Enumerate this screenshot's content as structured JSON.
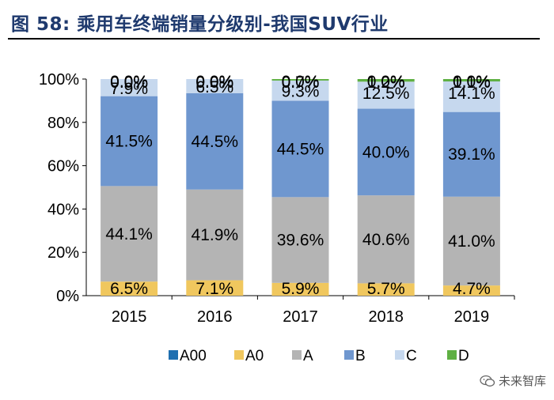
{
  "title": "图  58:  乘用车终端销量分级别-我国SUV行业",
  "watermark": "未来智库",
  "chart_data": {
    "type": "bar",
    "stacked": true,
    "categories": [
      "2015",
      "2016",
      "2017",
      "2018",
      "2019"
    ],
    "series": [
      {
        "name": "A00",
        "color": "#1f6fb0",
        "values": [
          0.0,
          0.0,
          0.0,
          0.0,
          0.0
        ]
      },
      {
        "name": "A0",
        "color": "#f0c75e",
        "values": [
          6.5,
          7.1,
          5.9,
          5.7,
          4.7
        ]
      },
      {
        "name": "A",
        "color": "#b4b4b4",
        "values": [
          44.1,
          41.9,
          39.6,
          40.6,
          41.0
        ]
      },
      {
        "name": "B",
        "color": "#6f97cf",
        "values": [
          41.5,
          44.5,
          44.5,
          40.0,
          39.1
        ]
      },
      {
        "name": "C",
        "color": "#c6d8ee",
        "values": [
          7.9,
          6.5,
          9.3,
          12.5,
          14.1
        ]
      },
      {
        "name": "D",
        "color": "#5fb043",
        "values": [
          0.0,
          0.0,
          0.7,
          1.2,
          1.1
        ]
      }
    ],
    "data_labels": {
      "A00": [
        "0.0%",
        "0.0%",
        "0.0%",
        "0.0%",
        "0.0%"
      ],
      "A0": [
        "6.5%",
        "7.1%",
        "5.9%",
        "5.7%",
        "4.7%"
      ],
      "A": [
        "44.1%",
        "41.9%",
        "39.6%",
        "40.6%",
        "41.0%"
      ],
      "B": [
        "41.5%",
        "44.5%",
        "44.5%",
        "40.0%",
        "39.1%"
      ],
      "C": [
        "7.9%",
        "6.5%",
        "9.3%",
        "12.5%",
        "14.1%"
      ],
      "D": [
        "0.0%",
        "0.0%",
        "0.7%",
        "1.2%",
        "1.1%"
      ]
    },
    "y_ticks": [
      "0%",
      "20%",
      "40%",
      "60%",
      "80%",
      "100%"
    ],
    "ylim": [
      0,
      100
    ],
    "legend": [
      "A00",
      "A0",
      "A",
      "B",
      "C",
      "D"
    ],
    "legend_position": "bottom",
    "grid": false
  }
}
